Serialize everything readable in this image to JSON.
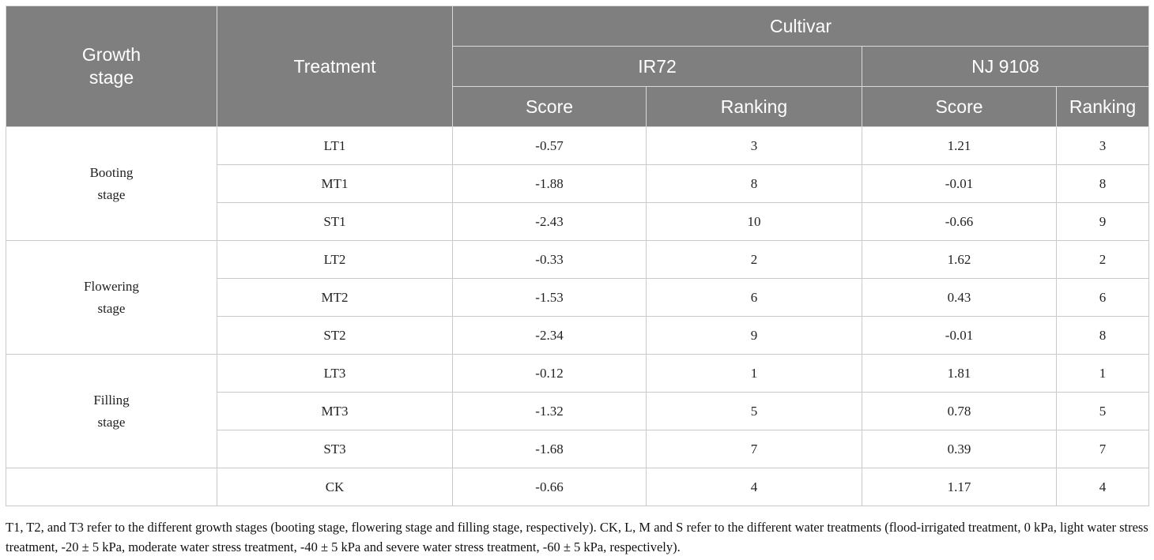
{
  "table": {
    "headers": {
      "growth_stage_line1": "Growth",
      "growth_stage_line2": "stage",
      "treatment": "Treatment",
      "cultivar": "Cultivar",
      "cultivar_ir72": "IR72",
      "cultivar_nj9108": "NJ 9108",
      "score": "Score",
      "ranking": "Ranking"
    },
    "groups": [
      {
        "stage_line1": "Booting",
        "stage_line2": "stage",
        "rows": [
          {
            "treatment": "LT1",
            "ir72_score": "-0.57",
            "ir72_rank": "3",
            "nj_score": "1.21",
            "nj_rank": "3"
          },
          {
            "treatment": "MT1",
            "ir72_score": "-1.88",
            "ir72_rank": "8",
            "nj_score": "-0.01",
            "nj_rank": "8"
          },
          {
            "treatment": "ST1",
            "ir72_score": "-2.43",
            "ir72_rank": "10",
            "nj_score": "-0.66",
            "nj_rank": "9"
          }
        ]
      },
      {
        "stage_line1": "Flowering",
        "stage_line2": "stage",
        "rows": [
          {
            "treatment": "LT2",
            "ir72_score": "-0.33",
            "ir72_rank": "2",
            "nj_score": "1.62",
            "nj_rank": "2"
          },
          {
            "treatment": "MT2",
            "ir72_score": "-1.53",
            "ir72_rank": "6",
            "nj_score": "0.43",
            "nj_rank": "6"
          },
          {
            "treatment": "ST2",
            "ir72_score": "-2.34",
            "ir72_rank": "9",
            "nj_score": "-0.01",
            "nj_rank": "8"
          }
        ]
      },
      {
        "stage_line1": "Filling",
        "stage_line2": "stage",
        "rows": [
          {
            "treatment": "LT3",
            "ir72_score": "-0.12",
            "ir72_rank": "1",
            "nj_score": "1.81",
            "nj_rank": "1"
          },
          {
            "treatment": "MT3",
            "ir72_score": "-1.32",
            "ir72_rank": "5",
            "nj_score": "0.78",
            "nj_rank": "5"
          },
          {
            "treatment": "ST3",
            "ir72_score": "-1.68",
            "ir72_rank": "7",
            "nj_score": "0.39",
            "nj_rank": "7"
          }
        ]
      }
    ],
    "ck_row": {
      "stage": "",
      "treatment": "CK",
      "ir72_score": "-0.66",
      "ir72_rank": "4",
      "nj_score": "1.17",
      "nj_rank": "4"
    }
  },
  "footnote": "T1, T2, and T3 refer to the different growth stages (booting stage, flowering stage and filling stage, respectively). CK, L, M and S refer to the different water treatments (flood-irrigated treatment, 0 kPa, light water stress treatment, -20 ± 5 kPa, moderate water stress treatment, -40 ± 5 kPa and severe water stress treatment, -60 ± 5 kPa, respectively).",
  "colors": {
    "header_bg": "#7f7f7f",
    "header_text": "#ffffff",
    "grid": "#c9c9c9"
  }
}
